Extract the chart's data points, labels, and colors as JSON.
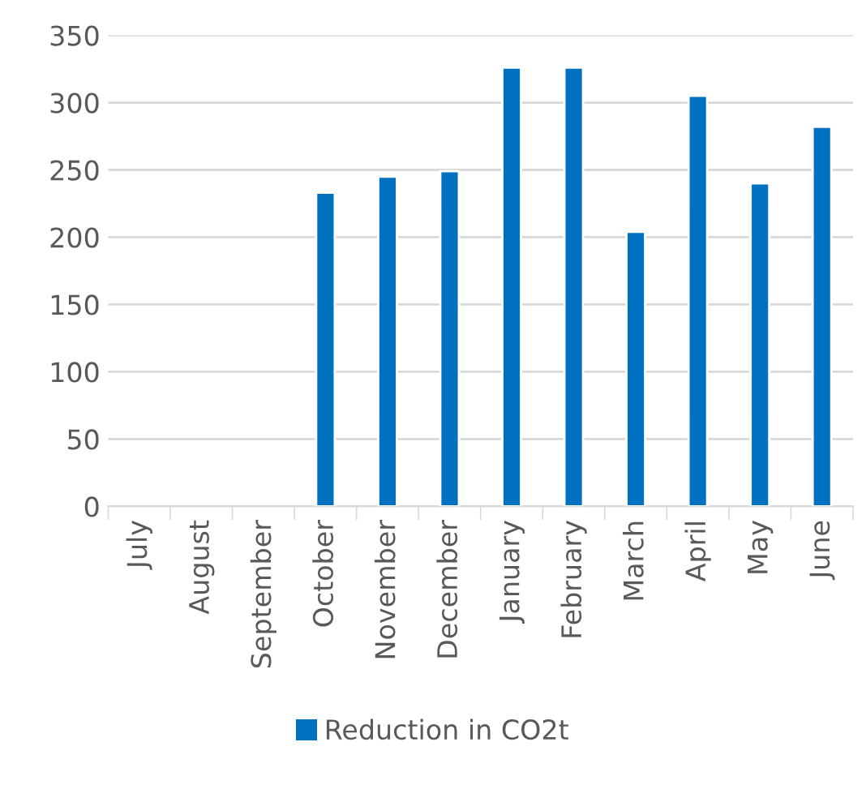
{
  "chart_data": {
    "type": "bar",
    "categories": [
      "July",
      "August",
      "September",
      "October",
      "November",
      "December",
      "January",
      "February",
      "March",
      "April",
      "May",
      "June"
    ],
    "series": [
      {
        "name": "Reduction in CO2t",
        "color": "#0070c0",
        "values": [
          null,
          null,
          null,
          233,
          245,
          249,
          326,
          326,
          204,
          305,
          240,
          282
        ]
      }
    ],
    "ylim": [
      0,
      350
    ],
    "yticks": [
      0,
      50,
      100,
      150,
      200,
      250,
      300,
      350
    ],
    "grid": "y",
    "legend": "bottom"
  }
}
